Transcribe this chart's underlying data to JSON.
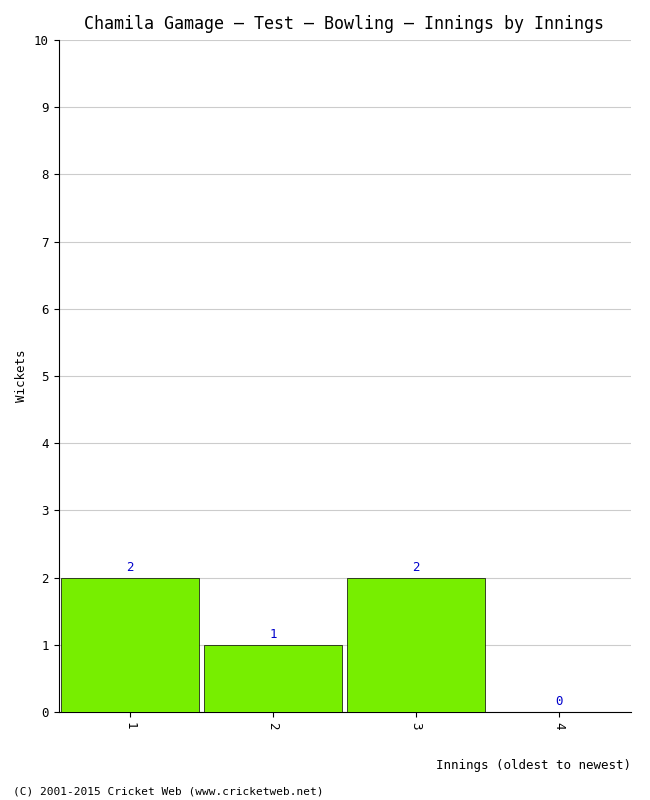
{
  "title": "Chamila Gamage – Test – Bowling – Innings by Innings",
  "innings": [
    1,
    2,
    3,
    4
  ],
  "wickets": [
    2,
    1,
    2,
    0
  ],
  "bar_color": "#77ee00",
  "bar_edge_color": "#000000",
  "xlabel": "Innings (oldest to newest)",
  "ylabel": "Wickets",
  "ylim": [
    0,
    10
  ],
  "yticks": [
    0,
    1,
    2,
    3,
    4,
    5,
    6,
    7,
    8,
    9,
    10
  ],
  "xticks": [
    1,
    2,
    3,
    4
  ],
  "background_color": "#ffffff",
  "grid_color": "#cccccc",
  "annotation_color": "#0000cc",
  "footer": "(C) 2001-2015 Cricket Web (www.cricketweb.net)",
  "title_fontsize": 12,
  "label_fontsize": 9,
  "tick_fontsize": 9,
  "annotation_fontsize": 9,
  "footer_fontsize": 8,
  "bar_width": 0.97
}
